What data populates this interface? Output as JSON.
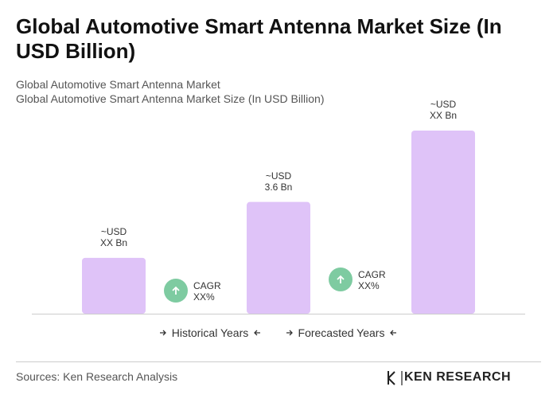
{
  "chart_data": {
    "type": "bar",
    "title": "Global Automotive Smart Antenna Market Size (In USD Billion)",
    "subtitle": [
      "Global Automotive Smart Antenna Market",
      "Global Automotive Smart Antenna Market Size (In USD Billion)"
    ],
    "values": [
      1.8,
      3.6,
      5.9
    ],
    "value_labels": [
      "~USD\nXX Bn",
      "~USD\n3.6 Bn",
      "~USD\nXX Bn"
    ],
    "color": "#dfc3f8",
    "cagr": [
      {
        "label": "CAGR",
        "value": "XX%"
      },
      {
        "label": "CAGR",
        "value": "XX%"
      }
    ],
    "cagr_color": "#7ecba1",
    "legend": [
      "Historical Years",
      "Forecasted Years"
    ],
    "source": "Sources: Ken Research Analysis",
    "logo": "KEN RESEARCH"
  }
}
